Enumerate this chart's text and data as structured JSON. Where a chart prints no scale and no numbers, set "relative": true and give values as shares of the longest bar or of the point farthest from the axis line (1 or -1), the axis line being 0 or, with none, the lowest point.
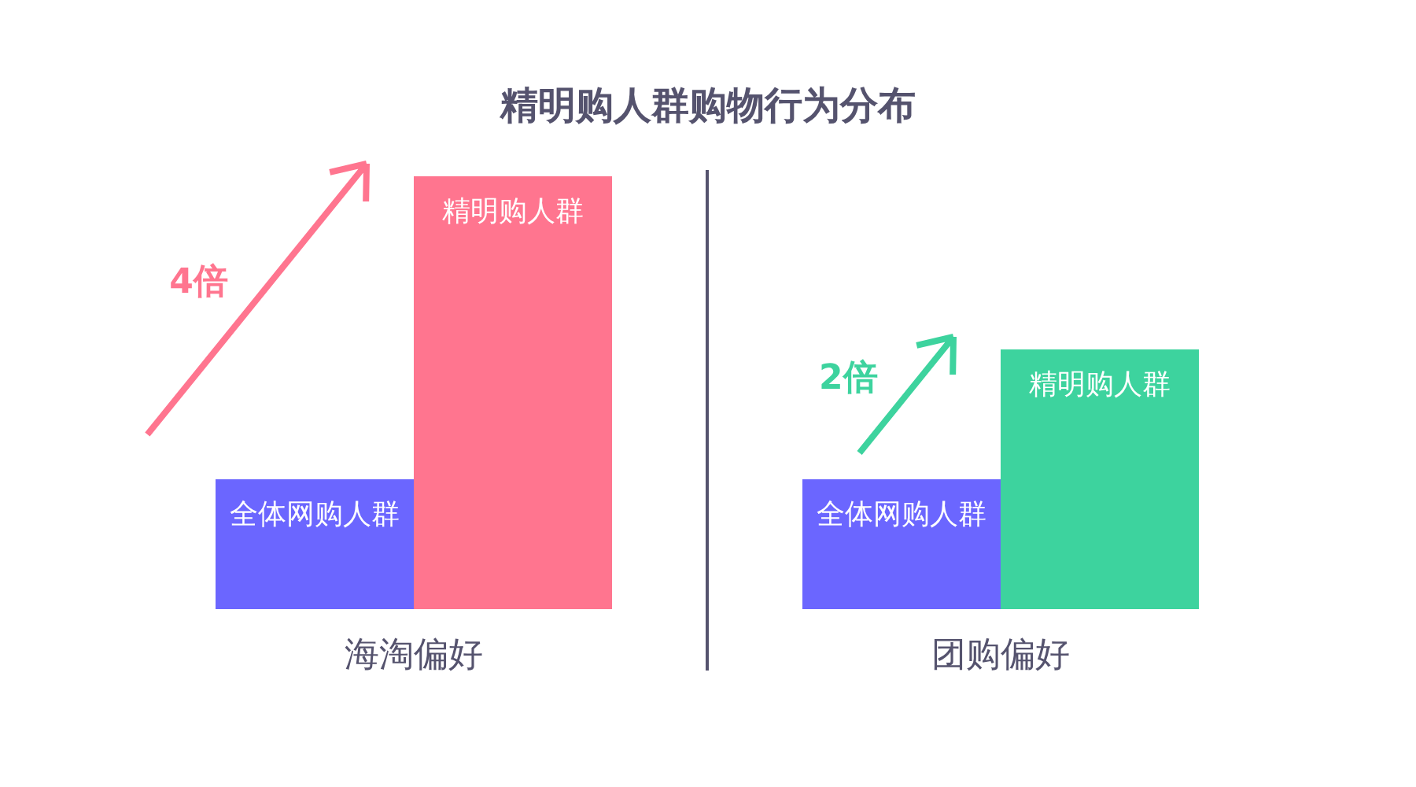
{
  "chart_data": {
    "type": "bar",
    "title": "精明购人群购物行为分布",
    "categories": [
      "海淘偏好",
      "团购偏好"
    ],
    "series": [
      {
        "name": "全体网购人群",
        "color": "#6b66ff",
        "values": [
          0.3,
          0.3
        ]
      },
      {
        "name": "精明购人群",
        "colors": [
          "#ff758f",
          "#3dd39e"
        ],
        "values": [
          1,
          0.6
        ]
      }
    ],
    "relative": true,
    "legend": false,
    "annotations": [
      "4倍",
      "2倍"
    ]
  }
}
